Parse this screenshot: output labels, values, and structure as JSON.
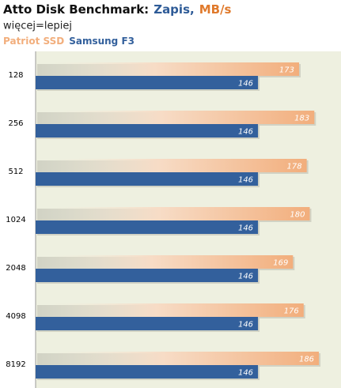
{
  "chart_data": {
    "type": "hbar",
    "title_parts": [
      {
        "text": "Atto Disk Benchmark:",
        "color": "#111111"
      },
      {
        "text": "Zapis,",
        "color": "#2e5b97"
      },
      {
        "text": "MB/s",
        "color": "#e07a2c"
      }
    ],
    "subtitle": "więcej=lepiej",
    "categories": [
      "128",
      "256",
      "512",
      "1024",
      "2048",
      "4098",
      "8192"
    ],
    "series": [
      {
        "name": "Patriot SSD",
        "color": "#f2ae7c",
        "values": [
          173,
          183,
          178,
          180,
          169,
          176,
          186
        ]
      },
      {
        "name": "Samsung F3",
        "color": "#33609c",
        "values": [
          146,
          146,
          146,
          146,
          146,
          146,
          146
        ]
      }
    ]
  }
}
